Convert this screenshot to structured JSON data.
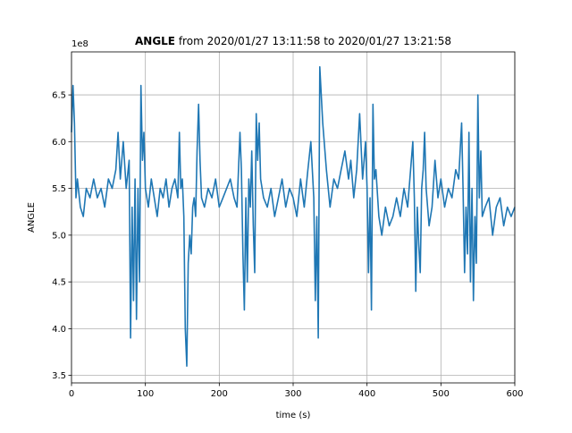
{
  "chart_data": {
    "type": "line",
    "title": {
      "bold": "ANGLE",
      "rest": " from 2020/01/27 13:11:58 to 2020/01/27 13:21:58"
    },
    "offset_label": "1e8",
    "xlabel": "time (s)",
    "ylabel": "ANGLE",
    "xlim": [
      0,
      600
    ],
    "ylim": [
      3.42,
      6.96
    ],
    "xticks": [
      0,
      100,
      200,
      300,
      400,
      500,
      600
    ],
    "xtick_labels": [
      "0",
      "100",
      "200",
      "300",
      "400",
      "500",
      "600"
    ],
    "yticks": [
      3.5,
      4.0,
      4.5,
      5.0,
      5.5,
      6.0,
      6.5
    ],
    "ytick_labels": [
      "3.5",
      "4.0",
      "4.5",
      "5.0",
      "5.5",
      "6.0",
      "6.5"
    ],
    "grid": true,
    "legend": "none",
    "colors": {
      "series": "#1f77b4",
      "grid": "#b0b0b0",
      "axes": "#000000"
    },
    "series": [
      {
        "x": [
          0,
          2,
          4,
          6,
          8,
          12,
          16,
          20,
          25,
          30,
          35,
          40,
          45,
          50,
          55,
          60,
          63,
          66,
          70,
          74,
          78,
          80,
          82,
          84,
          86,
          88,
          90,
          92,
          94,
          96,
          98,
          100,
          104,
          108,
          112,
          116,
          120,
          124,
          128,
          132,
          136,
          140,
          144,
          146,
          148,
          150,
          152,
          154,
          156,
          158,
          160,
          162,
          164,
          166,
          168,
          170,
          172,
          174,
          176,
          180,
          185,
          190,
          195,
          200,
          205,
          210,
          215,
          220,
          224,
          228,
          230,
          232,
          234,
          236,
          238,
          240,
          242,
          244,
          246,
          248,
          250,
          252,
          254,
          256,
          260,
          265,
          270,
          275,
          280,
          285,
          290,
          295,
          300,
          305,
          310,
          315,
          320,
          324,
          328,
          330,
          332,
          334,
          336,
          340,
          345,
          350,
          355,
          360,
          365,
          370,
          375,
          378,
          382,
          386,
          390,
          394,
          396,
          398,
          400,
          402,
          404,
          406,
          408,
          410,
          412,
          416,
          420,
          425,
          430,
          435,
          440,
          445,
          450,
          455,
          458,
          462,
          464,
          466,
          468,
          470,
          472,
          474,
          476,
          478,
          480,
          484,
          488,
          492,
          496,
          500,
          505,
          510,
          515,
          520,
          524,
          528,
          530,
          532,
          534,
          536,
          538,
          540,
          542,
          544,
          546,
          548,
          550,
          552,
          554,
          556,
          560,
          565,
          570,
          575,
          580,
          585,
          590,
          595,
          600
        ],
        "y": [
          6.1,
          6.6,
          6.2,
          5.4,
          5.6,
          5.3,
          5.2,
          5.5,
          5.4,
          5.6,
          5.4,
          5.5,
          5.3,
          5.6,
          5.5,
          5.7,
          6.1,
          5.6,
          6.0,
          5.5,
          5.8,
          3.9,
          5.3,
          4.3,
          5.6,
          4.1,
          5.5,
          4.5,
          6.6,
          5.8,
          6.1,
          5.5,
          5.3,
          5.6,
          5.4,
          5.2,
          5.5,
          5.4,
          5.6,
          5.3,
          5.5,
          5.6,
          5.4,
          6.1,
          5.5,
          5.6,
          5.2,
          4.0,
          3.6,
          4.7,
          5.0,
          4.8,
          5.3,
          5.4,
          5.2,
          5.9,
          6.4,
          5.8,
          5.4,
          5.3,
          5.5,
          5.4,
          5.6,
          5.3,
          5.4,
          5.5,
          5.6,
          5.4,
          5.3,
          6.1,
          5.7,
          4.8,
          4.2,
          5.4,
          4.5,
          5.6,
          5.3,
          5.9,
          5.1,
          4.6,
          6.3,
          5.8,
          6.2,
          5.6,
          5.4,
          5.3,
          5.5,
          5.2,
          5.4,
          5.6,
          5.3,
          5.5,
          5.4,
          5.2,
          5.6,
          5.3,
          5.7,
          6.0,
          5.4,
          4.3,
          5.2,
          3.9,
          6.8,
          6.2,
          5.7,
          5.3,
          5.6,
          5.5,
          5.7,
          5.9,
          5.6,
          5.8,
          5.4,
          5.7,
          6.3,
          5.6,
          5.8,
          6.0,
          5.5,
          4.6,
          5.4,
          4.2,
          6.4,
          5.6,
          5.7,
          5.2,
          5.0,
          5.3,
          5.1,
          5.2,
          5.4,
          5.2,
          5.5,
          5.3,
          5.6,
          6.0,
          5.4,
          4.4,
          5.3,
          4.9,
          4.6,
          5.5,
          5.7,
          6.1,
          5.5,
          5.1,
          5.3,
          5.8,
          5.4,
          5.6,
          5.3,
          5.5,
          5.4,
          5.7,
          5.6,
          6.2,
          5.5,
          4.6,
          5.3,
          4.8,
          6.1,
          4.5,
          5.5,
          4.3,
          5.2,
          4.7,
          6.5,
          5.4,
          5.9,
          5.2,
          5.3,
          5.4,
          5.0,
          5.3,
          5.4,
          5.1,
          5.3,
          5.2,
          5.3
        ]
      }
    ]
  }
}
